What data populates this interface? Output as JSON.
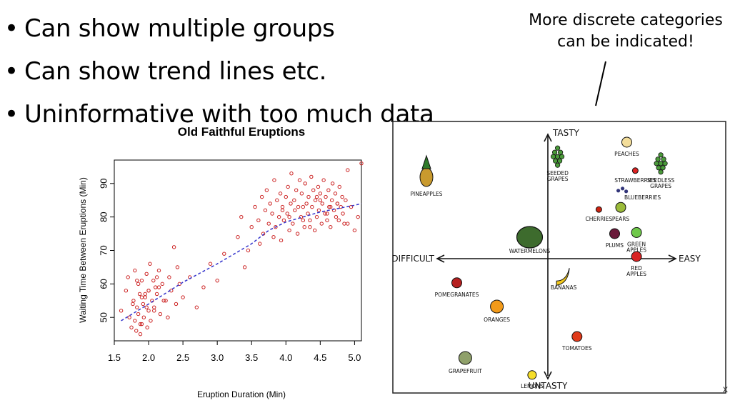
{
  "bullets": [
    {
      "marker": "•",
      "text": "Can show multiple groups"
    },
    {
      "marker": "•",
      "text": "Can show trend lines etc."
    },
    {
      "marker": "•",
      "text": "Uninformative with too much data"
    }
  ],
  "note": {
    "line1": "More discrete categories",
    "line2": "can be indicated!"
  },
  "chart_data": {
    "type": "scatter",
    "title": "Old Faithful Eruptions",
    "xlabel": "Eruption Duration (Min)",
    "ylabel": "Waiting Time Between Eruptions (Min)",
    "xlim": [
      1.5,
      5.1
    ],
    "ylim": [
      43,
      97
    ],
    "xticks": [
      "1.5",
      "2.0",
      "2.5",
      "3.0",
      "3.5",
      "4.0",
      "4.5",
      "5.0"
    ],
    "yticks": [
      "50",
      "60",
      "70",
      "80",
      "90"
    ],
    "point_color": "#cc2222",
    "trend_color": "#3333cc",
    "trend": {
      "x": [
        1.6,
        2.0,
        2.5,
        3.0,
        3.5,
        3.75,
        4.0,
        4.5,
        5.0,
        5.1
      ],
      "y": [
        49,
        54,
        60.5,
        66,
        72,
        76,
        78.5,
        81.5,
        83.5,
        84
      ]
    },
    "series": [
      {
        "x": [
          1.6,
          1.67,
          1.7,
          1.75,
          1.78,
          1.8,
          1.8,
          1.82,
          1.83,
          1.85,
          1.85,
          1.87,
          1.88,
          1.9,
          1.9,
          1.92,
          1.93,
          1.95,
          1.97,
          1.98,
          2.0,
          2.0,
          2.02,
          2.03,
          2.05,
          2.07,
          2.08,
          2.1,
          2.12,
          2.15,
          2.17,
          2.2,
          2.25,
          2.3,
          2.33,
          2.37,
          2.4,
          2.42,
          2.45,
          2.5,
          2.6,
          2.7,
          2.8,
          2.9,
          3.0,
          3.1,
          3.3,
          3.35,
          3.4,
          3.45,
          3.5,
          3.55,
          3.6,
          3.62,
          3.65,
          3.67,
          3.7,
          3.72,
          3.75,
          3.77,
          3.8,
          3.82,
          3.83,
          3.85,
          3.87,
          3.9,
          3.92,
          3.93,
          3.95,
          3.97,
          4.0,
          4.02,
          4.03,
          4.05,
          4.07,
          4.08,
          4.1,
          4.12,
          4.13,
          4.15,
          4.17,
          4.2,
          4.22,
          4.23,
          4.25,
          4.27,
          4.28,
          4.3,
          4.32,
          4.33,
          4.35,
          4.37,
          4.38,
          4.4,
          4.42,
          4.43,
          4.45,
          4.47,
          4.48,
          4.5,
          4.52,
          4.53,
          4.55,
          4.57,
          4.58,
          4.6,
          4.62,
          4.63,
          4.65,
          4.67,
          4.68,
          4.7,
          4.72,
          4.73,
          4.75,
          4.77,
          4.78,
          4.8,
          4.82,
          4.83,
          4.85,
          4.87,
          4.9,
          4.95,
          5.0,
          5.05,
          5.1,
          1.72,
          1.77,
          1.88,
          1.95,
          2.08,
          2.15,
          2.22,
          2.28,
          1.83,
          1.9,
          1.97,
          2.0,
          2.12,
          4.05,
          4.18,
          4.35,
          4.5,
          4.6,
          4.75,
          4.9,
          3.95,
          4.25,
          4.45,
          4.65
        ],
        "y": [
          52,
          58,
          62,
          47,
          55,
          49,
          64,
          46,
          53,
          60,
          51,
          57,
          45,
          61,
          48,
          54,
          50,
          56,
          63,
          47,
          58,
          52,
          66,
          49,
          55,
          61,
          53,
          59,
          57,
          64,
          51,
          60,
          55,
          62,
          58,
          71,
          54,
          65,
          60,
          56,
          62,
          53,
          59,
          66,
          61,
          69,
          74,
          80,
          65,
          70,
          77,
          83,
          79,
          72,
          86,
          75,
          82,
          88,
          78,
          84,
          81,
          74,
          91,
          77,
          85,
          80,
          87,
          73,
          83,
          79,
          86,
          81,
          89,
          76,
          84,
          93,
          78,
          85,
          82,
          88,
          75,
          91,
          80,
          87,
          83,
          77,
          90,
          84,
          81,
          86,
          79,
          92,
          83,
          88,
          76,
          85,
          80,
          89,
          82,
          87,
          78,
          84,
          91,
          81,
          86,
          79,
          88,
          83,
          77,
          85,
          90,
          82,
          87,
          80,
          84,
          79,
          89,
          83,
          86,
          81,
          78,
          85,
          94,
          83,
          76,
          80,
          96,
          50,
          54,
          48,
          57,
          52,
          59,
          55,
          50,
          61,
          56,
          53,
          58,
          62,
          80,
          83,
          77,
          85,
          81,
          84,
          78,
          82,
          79,
          86,
          83
        ],
        "name": ""
      }
    ]
  },
  "fruit_chart": {
    "axes": {
      "top": "TASTY",
      "bottom": "UNTASTY",
      "left": "DIFFICULT",
      "right": "EASY"
    },
    "items": [
      {
        "label": "PINEAPPLES",
        "emoji": "🍍",
        "kind": "pineapple",
        "tx": -1.0,
        "ty": 0.6
      },
      {
        "label": "SEEDED",
        "label2": "GRAPES",
        "kind": "grapes",
        "tx": 0.08,
        "ty": 0.78
      },
      {
        "label": "PEACHES",
        "kind": "peach",
        "tx": 0.65,
        "ty": 0.95
      },
      {
        "label": "STRAWBERRIES",
        "kind": "strawberry",
        "tx": 0.72,
        "ty": 0.72
      },
      {
        "label": "SEEDLESS",
        "label2": "GRAPES",
        "kind": "grapes",
        "tx": 0.93,
        "ty": 0.72
      },
      {
        "label": "BLUEBERRIES",
        "kind": "blueberry",
        "tx": 0.78,
        "ty": 0.57
      },
      {
        "label": "CHERRIES",
        "kind": "cherry",
        "tx": 0.42,
        "ty": 0.38
      },
      {
        "label": "PEARS",
        "kind": "pear",
        "tx": 0.6,
        "ty": 0.38
      },
      {
        "label": "PLUMS",
        "kind": "plum",
        "tx": 0.55,
        "ty": 0.15
      },
      {
        "label": "GREEN",
        "label2": "APPLES",
        "kind": "apple-green",
        "tx": 0.73,
        "ty": 0.16
      },
      {
        "label": "WATERMELONS",
        "kind": "watermelon",
        "tx": -0.15,
        "ty": 0.1
      },
      {
        "label": "RED",
        "label2": "APPLES",
        "kind": "apple-red",
        "tx": 0.73,
        "ty": -0.05
      },
      {
        "label": "POMEGRANATES",
        "kind": "pomegranate",
        "tx": -0.75,
        "ty": -0.28
      },
      {
        "label": "BANANAS",
        "kind": "banana",
        "tx": 0.13,
        "ty": -0.22
      },
      {
        "label": "ORANGES",
        "kind": "orange",
        "tx": -0.42,
        "ty": -0.5
      },
      {
        "label": "TOMATOES",
        "kind": "tomato",
        "tx": 0.24,
        "ty": -0.75
      },
      {
        "label": "GRAPEFRUIT",
        "kind": "grapefruit",
        "tx": -0.68,
        "ty": -0.95
      },
      {
        "label": "LEMONS",
        "kind": "lemon",
        "tx": -0.13,
        "ty": -1.08
      }
    ]
  },
  "stray_mark": "x"
}
